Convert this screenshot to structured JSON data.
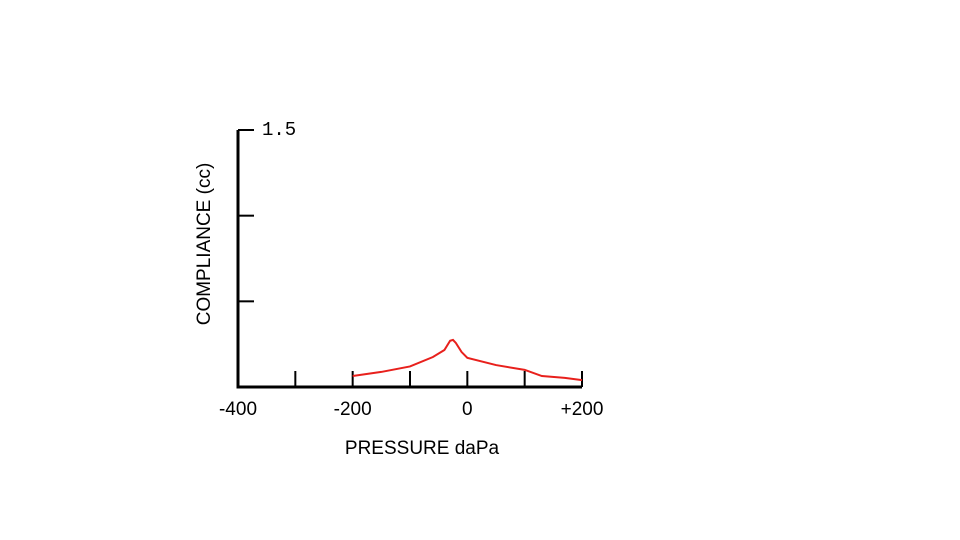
{
  "chart_data": {
    "type": "line",
    "xlabel": "PRESSURE daPa",
    "ylabel": "COMPLIANCE (cc)",
    "x": [
      -200,
      -150,
      -100,
      -60,
      -40,
      -30,
      -25,
      -20,
      -10,
      0,
      50,
      100,
      130,
      170,
      200
    ],
    "series": [
      {
        "color": "#e8201c",
        "values": [
          0.064,
          0.088,
          0.12,
          0.175,
          0.216,
          0.27,
          0.275,
          0.257,
          0.204,
          0.17,
          0.128,
          0.1,
          0.064,
          0.053,
          0.04
        ]
      }
    ],
    "xlim": [
      -400,
      200
    ],
    "xticks": [
      -400,
      -200,
      0,
      {
        "value": 200,
        "label": "+200"
      }
    ],
    "x_minor_ticks": [
      -300,
      -100,
      100
    ],
    "ylim": [
      0,
      1.5
    ],
    "yticks": [
      {
        "value": 1.5,
        "label": "1.5"
      }
    ],
    "y_minor_ticks": [
      0.5,
      1.0
    ]
  }
}
